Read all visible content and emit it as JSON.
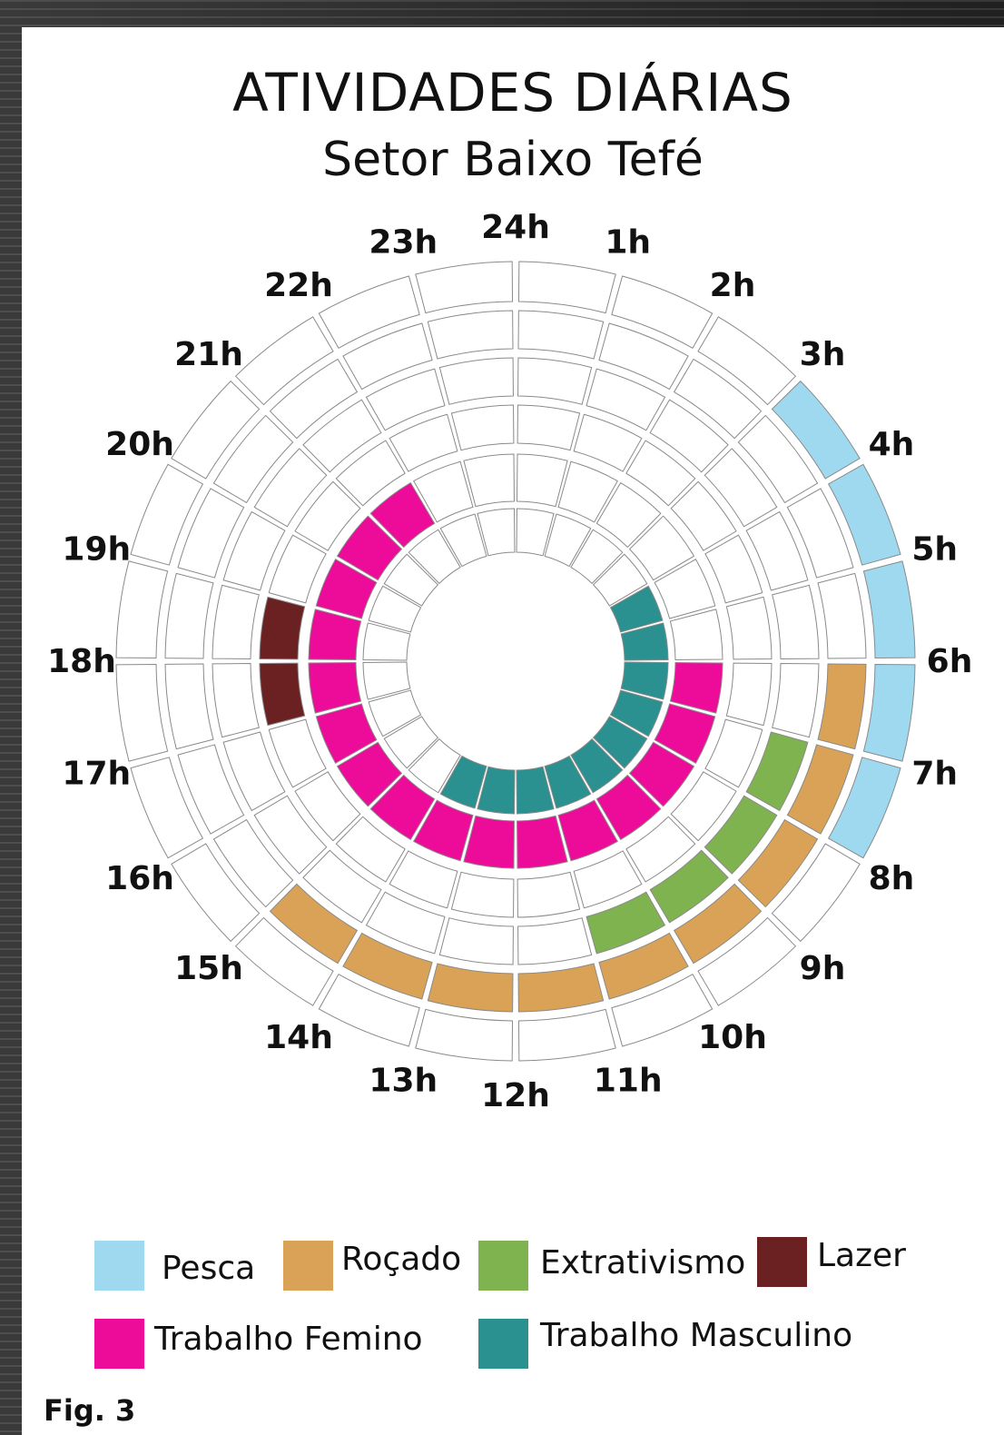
{
  "page": {
    "title": "ATIVIDADES DIÁRIAS",
    "subtitle": "Setor Baixo Tefé",
    "figure_label": "Fig. 3"
  },
  "colors": {
    "Pesca": "#9ed9f0",
    "Roçado": "#d9a256",
    "Extrativismo": "#7fb350",
    "Lazer": "#6b2121",
    "Trabalho Femino": "#ec0c99",
    "Trabalho Masculino": "#2a9190",
    "empty": "#ffffff",
    "outline": "#8a8a8a"
  },
  "chart_data": {
    "type": "radial-timeline",
    "hours": [
      "24h",
      "1h",
      "2h",
      "3h",
      "4h",
      "5h",
      "6h",
      "7h",
      "8h",
      "9h",
      "10h",
      "11h",
      "12h",
      "13h",
      "14h",
      "15h",
      "16h",
      "17h",
      "18h",
      "19h",
      "20h",
      "21h",
      "22h",
      "23h"
    ],
    "rings": [
      {
        "activity": "Pesca",
        "intervals": [
          [
            3,
            8
          ]
        ]
      },
      {
        "activity": "Roçado",
        "intervals": [
          [
            6,
            15
          ]
        ]
      },
      {
        "activity": "Extrativismo",
        "intervals": [
          [
            7,
            11
          ]
        ]
      },
      {
        "activity": "Lazer",
        "intervals": [
          [
            17,
            19
          ]
        ]
      },
      {
        "activity": "Trabalho Femino",
        "intervals": [
          [
            6,
            22
          ]
        ]
      },
      {
        "activity": "Trabalho Masculino",
        "intervals": [
          [
            4,
            14
          ]
        ]
      }
    ],
    "legend": [
      {
        "label": "Pesca",
        "color": "#9ed9f0"
      },
      {
        "label": "Roçado",
        "color": "#d9a256"
      },
      {
        "label": "Extrativismo",
        "color": "#7fb350"
      },
      {
        "label": "Lazer",
        "color": "#6b2121"
      },
      {
        "label": "Trabalho Femino",
        "color": "#ec0c99"
      },
      {
        "label": "Trabalho Masculino",
        "color": "#2a9190"
      }
    ]
  }
}
